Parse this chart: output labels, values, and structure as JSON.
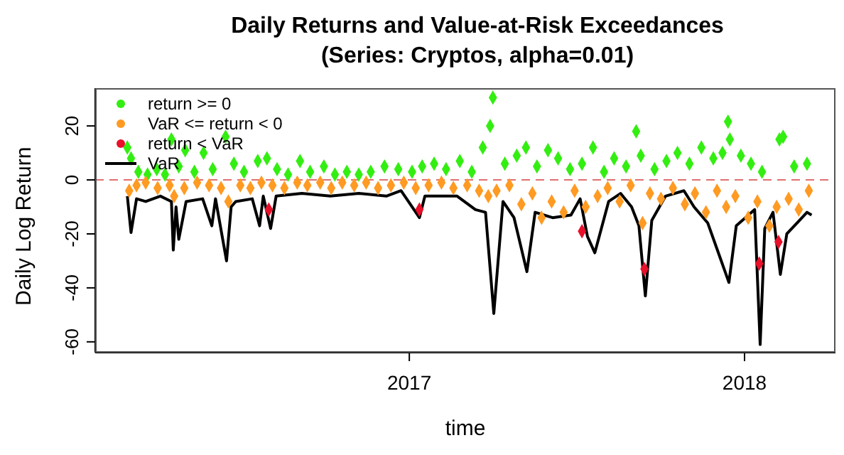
{
  "chart_data": {
    "type": "scatter",
    "title": "Daily Returns and Value-at-Risk Exceedances",
    "subtitle": "(Series: Cryptos, alpha=0.01)",
    "xlabel": "time",
    "ylabel": "Daily Log Return",
    "xlim": [
      "2016-01-25",
      "2018-04-10"
    ],
    "xticks": [
      {
        "value": "2017-01-01",
        "label": "2017"
      },
      {
        "value": "2018-01-01",
        "label": "2018"
      }
    ],
    "ylim": [
      -64,
      34
    ],
    "yticks": [
      -60,
      -40,
      -20,
      0,
      20
    ],
    "legend": "top left",
    "ref_lines": [
      {
        "axis": "y",
        "value": 0,
        "color": "#e07070",
        "line_style": "dashed"
      }
    ],
    "series": [
      {
        "name": "return >= 0",
        "color": "#33ee11",
        "marker": "diamond",
        "x": [
          "2016-02-29",
          "2016-03-04",
          "2016-03-12",
          "2016-03-22",
          "2016-04-01",
          "2016-04-10",
          "2016-04-17",
          "2016-04-25",
          "2016-05-02",
          "2016-05-12",
          "2016-05-22",
          "2016-06-01",
          "2016-06-15",
          "2016-06-24",
          "2016-07-05",
          "2016-07-20",
          "2016-07-30",
          "2016-08-10",
          "2016-08-22",
          "2016-09-04",
          "2016-09-15",
          "2016-09-30",
          "2016-10-12",
          "2016-10-25",
          "2016-11-07",
          "2016-11-20",
          "2016-12-05",
          "2016-12-20",
          "2017-01-04",
          "2017-01-15",
          "2017-01-28",
          "2017-02-10",
          "2017-02-25",
          "2017-03-10",
          "2017-03-22",
          "2017-03-30",
          "2017-04-02",
          "2017-04-15",
          "2017-04-28",
          "2017-05-08",
          "2017-05-20",
          "2017-06-01",
          "2017-06-12",
          "2017-06-25",
          "2017-07-08",
          "2017-07-20",
          "2017-08-01",
          "2017-08-12",
          "2017-08-25",
          "2017-09-05",
          "2017-09-10",
          "2017-09-25",
          "2017-10-08",
          "2017-10-20",
          "2017-11-02",
          "2017-11-15",
          "2017-11-28",
          "2017-12-08",
          "2017-12-14",
          "2017-12-16",
          "2017-12-28",
          "2018-01-08",
          "2018-01-20",
          "2018-02-08",
          "2018-02-12",
          "2018-02-24",
          "2018-03-10"
        ],
        "values": [
          12,
          8,
          3,
          2,
          4,
          2,
          15,
          5,
          11,
          3,
          10,
          4,
          16,
          6,
          3,
          7,
          8,
          4,
          2,
          7,
          3,
          5,
          2,
          3,
          2,
          3,
          5,
          4,
          3,
          5,
          6,
          4,
          7,
          3,
          12,
          20,
          30.5,
          6,
          9,
          12,
          5,
          11,
          8,
          4,
          6,
          12,
          3,
          8,
          5,
          18,
          9,
          4,
          7,
          10,
          6,
          12,
          8,
          10,
          21.6,
          15,
          9,
          6,
          3,
          15,
          16,
          5,
          6
        ]
      },
      {
        "name": "VaR <= return < 0",
        "color": "#ff9a22",
        "marker": "diamond",
        "x": [
          "2016-03-02",
          "2016-03-10",
          "2016-03-20",
          "2016-04-02",
          "2016-04-15",
          "2016-04-20",
          "2016-05-01",
          "2016-05-15",
          "2016-05-28",
          "2016-06-10",
          "2016-06-18",
          "2016-07-01",
          "2016-07-12",
          "2016-07-24",
          "2016-08-05",
          "2016-08-18",
          "2016-09-01",
          "2016-09-12",
          "2016-09-26",
          "2016-10-08",
          "2016-10-20",
          "2016-11-02",
          "2016-11-15",
          "2016-11-28",
          "2016-12-12",
          "2016-12-26",
          "2017-01-08",
          "2017-01-22",
          "2017-02-05",
          "2017-02-18",
          "2017-03-05",
          "2017-03-18",
          "2017-03-28",
          "2017-04-06",
          "2017-04-20",
          "2017-05-03",
          "2017-05-15",
          "2017-05-25",
          "2017-06-05",
          "2017-06-18",
          "2017-06-30",
          "2017-07-12",
          "2017-07-25",
          "2017-08-05",
          "2017-08-18",
          "2017-08-30",
          "2017-09-12",
          "2017-09-20",
          "2017-10-02",
          "2017-10-15",
          "2017-10-28",
          "2017-11-08",
          "2017-11-20",
          "2017-12-02",
          "2017-12-12",
          "2017-12-22",
          "2018-01-05",
          "2018-01-15",
          "2018-01-28",
          "2018-02-05",
          "2018-02-18",
          "2018-03-01",
          "2018-03-12"
        ],
        "values": [
          -4,
          -2,
          -1,
          -3,
          -2,
          -6,
          -3,
          -1,
          -2,
          -3,
          -8,
          -2,
          -3,
          -1,
          -2,
          -3,
          -1,
          -2,
          -1,
          -3,
          -1,
          -2,
          -1,
          -3,
          -2,
          -1,
          -3,
          -2,
          -1,
          -3,
          -2,
          -4,
          -6,
          -4,
          -2,
          -9,
          -5,
          -14,
          -8,
          -12,
          -4,
          -10,
          -6,
          -3,
          -8,
          -2,
          -16,
          -5,
          -7,
          -3,
          -9,
          -5,
          -12,
          -4,
          -10,
          -6,
          -14,
          -8,
          -17,
          -10,
          -7,
          -11,
          -4
        ]
      },
      {
        "name": "return < VaR",
        "color": "#e8102a",
        "marker": "diamond",
        "x": [
          "2016-08-01",
          "2017-01-12",
          "2017-07-08",
          "2017-09-14",
          "2018-01-17",
          "2018-02-07"
        ],
        "values": [
          -11,
          -11,
          -19,
          -33,
          -31,
          -23
        ]
      },
      {
        "name": "VaR",
        "type": "line",
        "color": "#000000",
        "line_style": "solid",
        "marker": "none",
        "x": [
          "2016-02-29",
          "2016-03-04",
          "2016-03-10",
          "2016-03-20",
          "2016-04-05",
          "2016-04-17",
          "2016-04-19",
          "2016-04-22",
          "2016-04-25",
          "2016-05-03",
          "2016-05-21",
          "2016-05-31",
          "2016-06-04",
          "2016-06-16",
          "2016-06-21",
          "2016-06-26",
          "2016-07-14",
          "2016-07-22",
          "2016-07-26",
          "2016-08-03",
          "2016-08-09",
          "2016-09-06",
          "2016-10-07",
          "2016-11-07",
          "2016-12-07",
          "2016-12-23",
          "2017-01-12",
          "2017-01-18",
          "2017-02-22",
          "2017-03-14",
          "2017-03-25",
          "2017-04-03",
          "2017-04-13",
          "2017-04-25",
          "2017-05-09",
          "2017-05-18",
          "2017-06-06",
          "2017-06-26",
          "2017-07-06",
          "2017-07-14",
          "2017-07-22",
          "2017-08-06",
          "2017-08-19",
          "2017-08-31",
          "2017-09-08",
          "2017-09-15",
          "2017-09-22",
          "2017-10-07",
          "2017-10-27",
          "2017-11-07",
          "2017-11-22",
          "2017-12-15",
          "2017-12-23",
          "2018-01-12",
          "2018-01-18",
          "2018-01-23",
          "2018-02-01",
          "2018-02-09",
          "2018-02-16",
          "2018-02-27",
          "2018-03-10",
          "2018-03-15"
        ],
        "values": [
          -6,
          -19.5,
          -7,
          -8,
          -6,
          -8,
          -26,
          -10,
          -22,
          -8,
          -7,
          -17,
          -7,
          -30,
          -10,
          -8,
          -7,
          -17,
          -6,
          -18,
          -6,
          -5,
          -6,
          -5,
          -6,
          -4,
          -14,
          -6,
          -6,
          -11,
          -12,
          -49.5,
          -8,
          -14,
          -34,
          -12,
          -14,
          -13,
          -7,
          -21,
          -27,
          -8,
          -5,
          -10,
          -17,
          -43,
          -15,
          -6,
          -4,
          -10,
          -16,
          -38,
          -17,
          -11,
          -61,
          -18,
          -12,
          -35,
          -20,
          -16,
          -12,
          -13
        ]
      }
    ]
  }
}
